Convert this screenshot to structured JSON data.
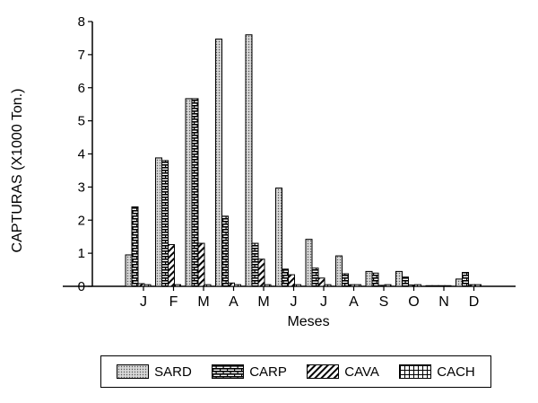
{
  "chart_data": {
    "type": "bar",
    "title": "",
    "xlabel": "Meses",
    "ylabel": "CAPTURAS (X1000 Ton.)",
    "ylim": [
      0,
      8
    ],
    "yticks": [
      "0",
      "1",
      "2",
      "3",
      "4",
      "5",
      "6",
      "7",
      "8"
    ],
    "categories": [
      "J",
      "F",
      "M",
      "A",
      "M",
      "J",
      "J",
      "A",
      "S",
      "O",
      "N",
      "D"
    ],
    "series": [
      {
        "name": "SARD",
        "pattern": "dots",
        "values": [
          0.95,
          3.88,
          5.67,
          7.47,
          7.6,
          2.97,
          1.42,
          0.92,
          0.45,
          0.45,
          0.02,
          0.22
        ]
      },
      {
        "name": "CARP",
        "pattern": "bricks",
        "values": [
          2.4,
          3.8,
          5.67,
          2.12,
          1.3,
          0.52,
          0.55,
          0.38,
          0.4,
          0.28,
          0.02,
          0.42
        ]
      },
      {
        "name": "CAVA",
        "pattern": "diagonal",
        "values": [
          0.08,
          1.26,
          1.3,
          0.1,
          0.82,
          0.35,
          0.25,
          0.05,
          0.03,
          0.04,
          0.02,
          0.05
        ]
      },
      {
        "name": "CACH",
        "pattern": "grid",
        "values": [
          0.05,
          0.05,
          0.05,
          0.05,
          0.05,
          0.05,
          0.05,
          0.05,
          0.05,
          0.05,
          0.02,
          0.05
        ]
      }
    ],
    "grid": false,
    "legend_position": "bottom"
  }
}
